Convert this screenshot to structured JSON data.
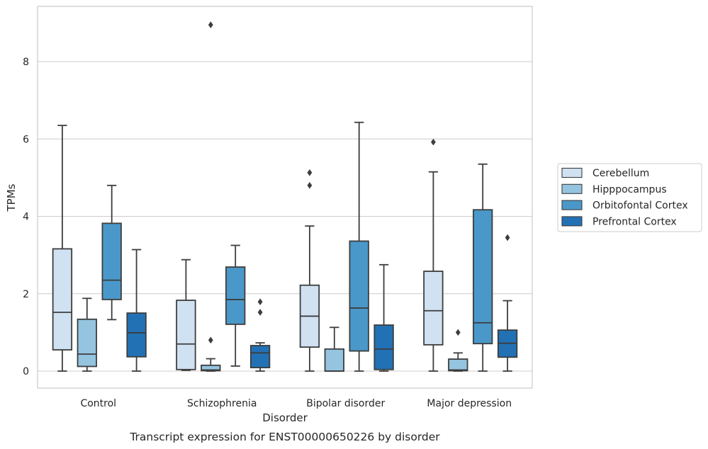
{
  "caption": "Transcript expression for ENST00000650226 by disorder",
  "chart_data": {
    "type": "box",
    "title": "",
    "xlabel": "Disorder",
    "ylabel": "TPMs",
    "ylim": [
      -0.45,
      9.3
    ],
    "yticks": [
      0,
      2,
      4,
      6,
      8
    ],
    "grid": "horizontal",
    "legend_position": "right",
    "categories": [
      "Control",
      "Schizophrenia",
      "Bipolar disorder",
      "Major depression"
    ],
    "series": [
      {
        "name": "Cerebellum",
        "color": "#d0e1f2",
        "boxes": [
          {
            "whisker_low": 0,
            "q1": 0.55,
            "median": 1.52,
            "q3": 3.16,
            "whisker_high": 6.35,
            "outliers": []
          },
          {
            "whisker_low": 0.02,
            "q1": 0.04,
            "median": 0.7,
            "q3": 1.83,
            "whisker_high": 2.88,
            "outliers": []
          },
          {
            "whisker_low": 0,
            "q1": 0.62,
            "median": 1.42,
            "q3": 2.22,
            "whisker_high": 3.75,
            "outliers": [
              4.8,
              5.13
            ]
          },
          {
            "whisker_low": 0,
            "q1": 0.68,
            "median": 1.56,
            "q3": 2.58,
            "whisker_high": 5.15,
            "outliers": [
              5.92
            ]
          }
        ]
      },
      {
        "name": "Hipppocampus",
        "color": "#94c4df",
        "boxes": [
          {
            "whisker_low": 0,
            "q1": 0.12,
            "median": 0.44,
            "q3": 1.34,
            "whisker_high": 1.88,
            "outliers": []
          },
          {
            "whisker_low": 0,
            "q1": 0.01,
            "median": 0.03,
            "q3": 0.15,
            "whisker_high": 0.32,
            "outliers": [
              0.8,
              8.95
            ]
          },
          {
            "whisker_low": 0,
            "q1": 0,
            "median": 0,
            "q3": 0.57,
            "whisker_high": 1.13,
            "outliers": []
          },
          {
            "whisker_low": 0,
            "q1": 0.01,
            "median": 0.03,
            "q3": 0.31,
            "whisker_high": 0.47,
            "outliers": [
              1.0
            ]
          }
        ]
      },
      {
        "name": "Orbitofontal Cortex",
        "color": "#4a98c9",
        "boxes": [
          {
            "whisker_low": 1.33,
            "q1": 1.85,
            "median": 2.35,
            "q3": 3.82,
            "whisker_high": 4.8,
            "outliers": []
          },
          {
            "whisker_low": 0.13,
            "q1": 1.21,
            "median": 1.85,
            "q3": 2.69,
            "whisker_high": 3.25,
            "outliers": []
          },
          {
            "whisker_low": 0,
            "q1": 0.52,
            "median": 1.63,
            "q3": 3.36,
            "whisker_high": 6.43,
            "outliers": []
          },
          {
            "whisker_low": 0,
            "q1": 0.71,
            "median": 1.25,
            "q3": 4.17,
            "whisker_high": 5.35,
            "outliers": []
          }
        ]
      },
      {
        "name": "Prefrontal Cortex",
        "color": "#2271b5",
        "boxes": [
          {
            "whisker_low": 0,
            "q1": 0.37,
            "median": 0.99,
            "q3": 1.5,
            "whisker_high": 3.14,
            "outliers": []
          },
          {
            "whisker_low": 0,
            "q1": 0.09,
            "median": 0.47,
            "q3": 0.66,
            "whisker_high": 0.73,
            "outliers": [
              1.52,
              1.79
            ]
          },
          {
            "whisker_low": 0,
            "q1": 0.04,
            "median": 0.57,
            "q3": 1.19,
            "whisker_high": 2.75,
            "outliers": []
          },
          {
            "whisker_low": 0,
            "q1": 0.36,
            "median": 0.72,
            "q3": 1.06,
            "whisker_high": 1.82,
            "outliers": [
              3.45
            ]
          }
        ]
      }
    ]
  }
}
